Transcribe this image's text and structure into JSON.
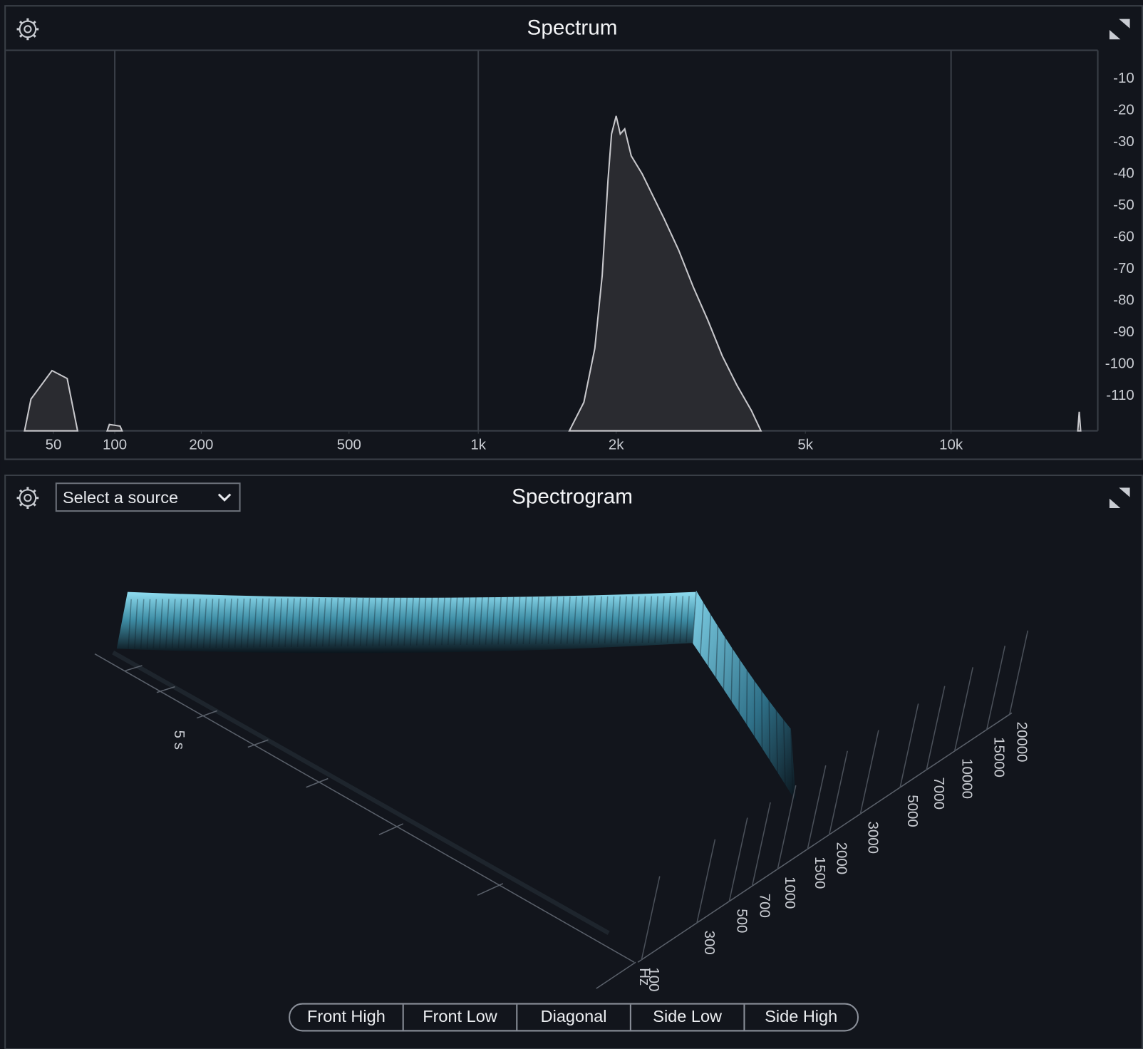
{
  "chart_data": {
    "type": "area",
    "title": "Spectrum",
    "x_scale": "log",
    "xlim": [
      20,
      20000
    ],
    "ylim": [
      -121,
      -1
    ],
    "xticks": [
      50,
      100,
      200,
      500,
      {
        "value": 1000,
        "label": "1k"
      },
      {
        "value": 2000,
        "label": "2k"
      },
      {
        "value": 5000,
        "label": "5k"
      },
      {
        "value": 10000,
        "label": "10k"
      }
    ],
    "xgrid": [
      100,
      1000,
      10000
    ],
    "yticks": [
      -10,
      -20,
      -30,
      -40,
      -50,
      -60,
      -70,
      -80,
      -90,
      -100,
      -110
    ],
    "color": "#2a2b30",
    "line_color": "#c8c8cc",
    "x": [
      31,
      35,
      49,
      60,
      68,
      null,
      93,
      95,
      105,
      107,
      null,
      1586,
      1705,
      1800,
      1867,
      1921,
      1955,
      2000,
      2041,
      2086,
      2154,
      2273,
      2397,
      2528,
      2715,
      2914,
      3126,
      3355,
      3599,
      3860,
      4041,
      null,
      18200,
      18325,
      18450
    ],
    "values": [
      -121,
      -111,
      -102,
      -104.5,
      -121,
      null,
      -121,
      -119,
      -119.5,
      -121,
      null,
      -121,
      -112,
      -95,
      -72,
      -42,
      -27.4,
      -21.7,
      -27.4,
      -25.8,
      -34.3,
      -40,
      -47,
      -54,
      -64,
      -75.6,
      -86,
      -97.4,
      -106.6,
      -114.6,
      -121,
      null,
      -121,
      -115,
      -121
    ]
  },
  "spectrogram": {
    "title": "Spectrogram",
    "source_select": "Select a source",
    "time_label": "5 s",
    "freq_unit": "Hz",
    "freq_ticks": [
      100,
      300,
      500,
      700,
      1000,
      1500,
      2000,
      3000,
      5000,
      7000,
      10000,
      15000,
      20000
    ],
    "view_buttons": [
      "Front High",
      "Front Low",
      "Diagonal",
      "Side Low",
      "Side High"
    ]
  }
}
